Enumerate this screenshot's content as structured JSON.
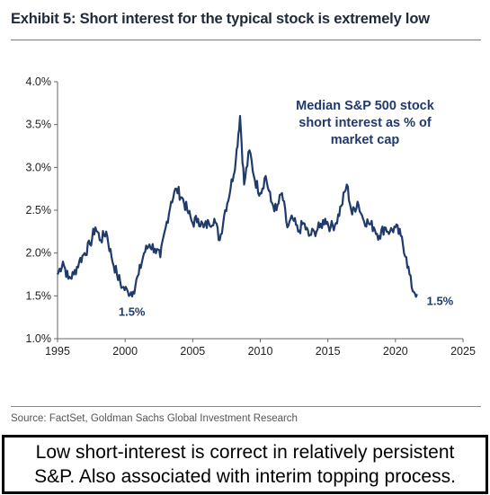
{
  "title": "Exhibit 5: Short interest for the typical stock is extremely low",
  "source": "Source: FactSet, Goldman Sachs Global Investment Research",
  "caption": {
    "line1": "Low short-interest is correct in relatively persistent",
    "line2": "S&P. Also associated with interim topping process."
  },
  "colors": {
    "series": "#1f3a6b",
    "axis": "#666666",
    "text": "#1f2a3c"
  },
  "chart_data": {
    "type": "line",
    "xlim": [
      1995,
      2025
    ],
    "ylim": [
      1.0,
      4.0
    ],
    "x_ticks": [
      1995,
      2000,
      2005,
      2010,
      2015,
      2020,
      2025
    ],
    "y_ticks": [
      1.0,
      1.5,
      2.0,
      2.5,
      3.0,
      3.5,
      4.0
    ],
    "x_tick_labels": [
      "1995",
      "2000",
      "2005",
      "2010",
      "2015",
      "2020",
      "2025"
    ],
    "y_tick_labels": [
      "1.0%",
      "1.5%",
      "2.0%",
      "2.5%",
      "3.0%",
      "3.5%",
      "4.0%"
    ],
    "xlabel": "",
    "ylabel": "",
    "grid": false,
    "series": [
      {
        "name": "Median S&P 500 stock short interest as % of market cap",
        "x": [
          1995.0,
          1995.4,
          1995.8,
          1996.2,
          1996.6,
          1997.0,
          1997.4,
          1997.8,
          1998.2,
          1998.6,
          1999.0,
          1999.4,
          1999.8,
          2000.2,
          2000.6,
          2001.0,
          2001.4,
          2001.8,
          2002.2,
          2002.6,
          2003.0,
          2003.4,
          2003.8,
          2004.2,
          2004.6,
          2005.0,
          2005.4,
          2005.8,
          2006.2,
          2006.6,
          2007.0,
          2007.4,
          2007.8,
          2008.2,
          2008.5,
          2008.8,
          2009.2,
          2009.6,
          2010.0,
          2010.4,
          2010.8,
          2011.2,
          2011.6,
          2012.0,
          2012.4,
          2012.8,
          2013.2,
          2013.6,
          2014.0,
          2014.4,
          2014.8,
          2015.2,
          2015.6,
          2016.0,
          2016.4,
          2016.8,
          2017.2,
          2017.6,
          2018.0,
          2018.4,
          2018.8,
          2019.2,
          2019.6,
          2020.0,
          2020.4,
          2020.8,
          2021.2,
          2021.6
        ],
        "values": [
          1.75,
          1.9,
          1.7,
          1.75,
          1.9,
          2.0,
          2.1,
          2.3,
          2.15,
          2.25,
          1.95,
          1.75,
          1.6,
          1.55,
          1.55,
          1.75,
          2.0,
          2.1,
          2.05,
          1.95,
          2.3,
          2.6,
          2.75,
          2.65,
          2.5,
          2.35,
          2.4,
          2.3,
          2.35,
          2.4,
          2.15,
          2.5,
          2.75,
          3.1,
          3.6,
          2.8,
          3.2,
          2.85,
          2.7,
          2.9,
          2.6,
          2.5,
          2.7,
          2.3,
          2.4,
          2.25,
          2.35,
          2.2,
          2.25,
          2.3,
          2.4,
          2.3,
          2.35,
          2.55,
          2.8,
          2.45,
          2.6,
          2.4,
          2.35,
          2.3,
          2.2,
          2.3,
          2.25,
          2.3,
          2.2,
          1.95,
          1.6,
          1.52
        ]
      }
    ],
    "annotations": [
      {
        "text": "1.5%",
        "x": 2000.5,
        "y": 1.5
      },
      {
        "text": "1.5%",
        "x": 2023.3,
        "y": 1.5
      }
    ],
    "legend_text": [
      "Median S&P 500 stock",
      "short interest as % of",
      "market cap"
    ],
    "legend_placement": "top-right"
  }
}
